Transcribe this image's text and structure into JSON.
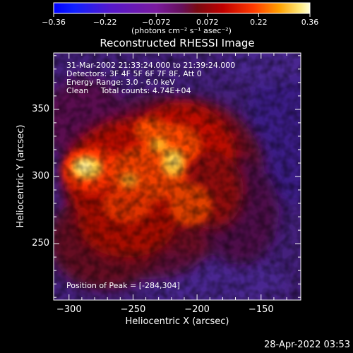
{
  "colorbar": {
    "ticks": [
      "−0.36",
      "−0.22",
      "−0.072",
      "0.072",
      "0.22",
      "0.36"
    ],
    "units_label": "(photons cm⁻² s⁻¹ asec⁻²)",
    "range": [
      -0.36,
      0.36
    ]
  },
  "plot": {
    "title": "Reconstructed RHESSI Image",
    "info_lines": [
      "31-Mar-2002 21:33:24.000 to 21:39:24.000",
      "Detectors: 3F 4F 5F 6F 7F 8F, Att 0",
      "Energy Range: 3.0 - 6.0 keV",
      "Clean     Total counts: 4.74E+04"
    ],
    "peak_label": "Position of Peak = [-284,304]",
    "peak": [
      -284,
      304
    ],
    "xlabel": "Heliocentric X (arcsec)",
    "ylabel": "Heliocentric Y (arcsec)",
    "x_ticks": [
      "−300",
      "−250",
      "−200",
      "−150"
    ],
    "y_ticks": [
      "250",
      "300",
      "350"
    ],
    "xlim": [
      -312,
      -119
    ],
    "ylim": [
      208,
      392
    ]
  },
  "footer": {
    "date": "28-Apr-2022 03:53"
  }
}
